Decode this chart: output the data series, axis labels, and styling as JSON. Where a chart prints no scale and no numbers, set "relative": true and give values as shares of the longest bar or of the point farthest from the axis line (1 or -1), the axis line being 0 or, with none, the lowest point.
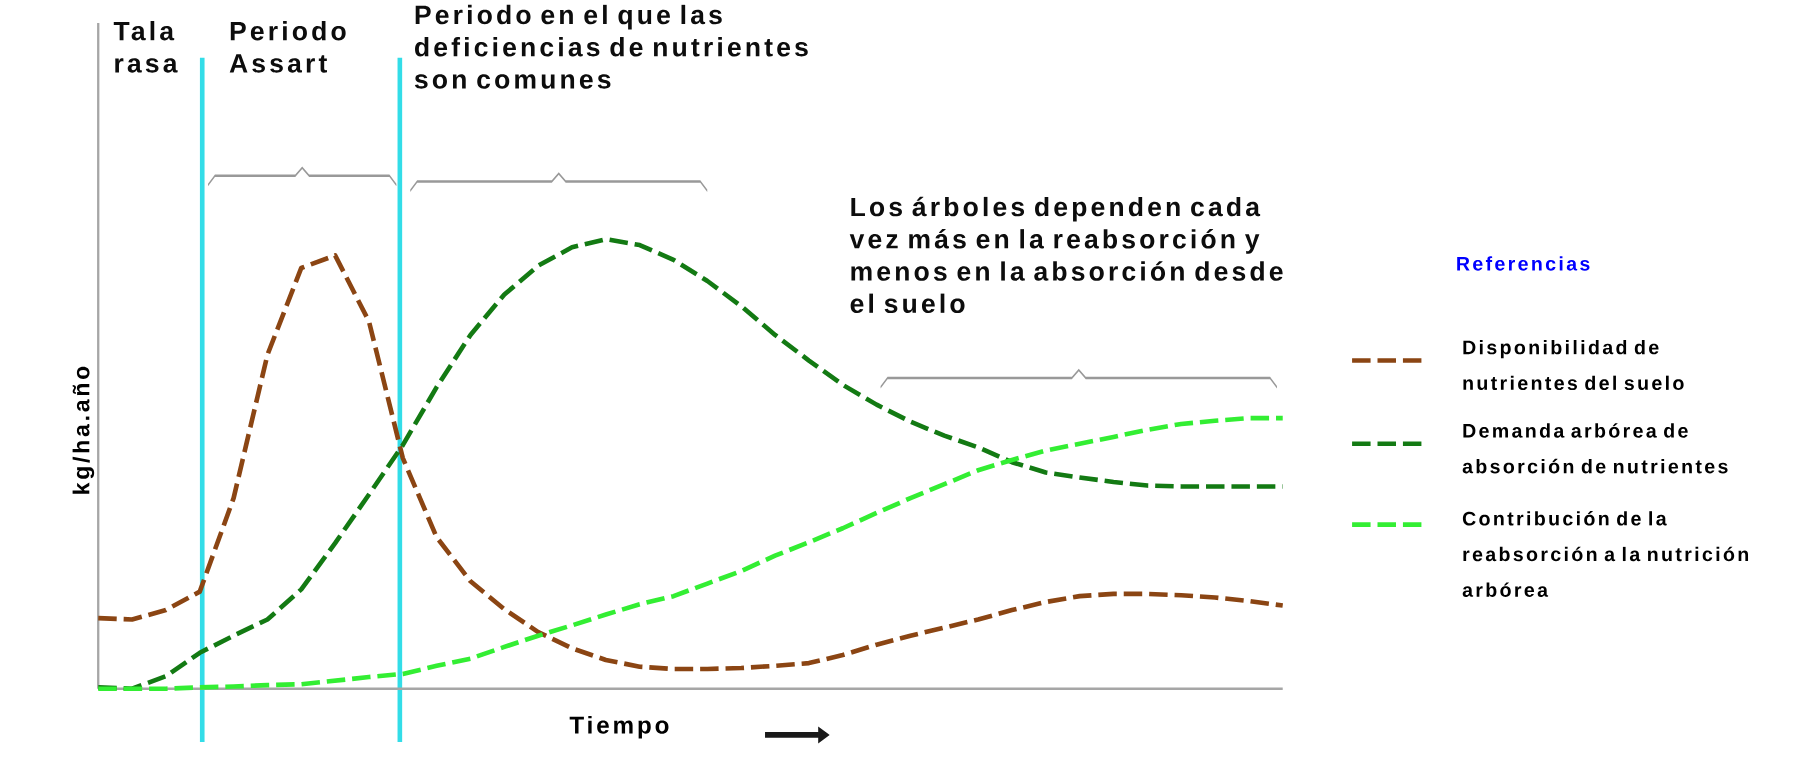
{
  "chart_data": {
    "type": "line",
    "relative": true,
    "xlabel": "Tiempo",
    "ylabel": "kg/ha.año",
    "legend_title": "Referencias",
    "legend": "right",
    "line_style": "dashed",
    "categories": [
      null,
      null,
      null,
      null,
      null,
      null,
      null,
      null,
      null,
      null,
      null,
      null,
      null,
      null,
      null,
      null,
      null,
      null,
      null,
      null,
      null,
      null,
      null,
      null,
      null,
      null,
      null,
      null,
      null,
      null,
      null,
      null,
      null,
      null,
      null,
      null
    ],
    "annotations": [
      "Tala rasa",
      "Periodo Assart",
      "Periodo en el que las deficiencias de nutrientes son comunes",
      "Los árboles dependen cada vez más en la reabsorción y menos en la absorción desde el suelo"
    ],
    "series": [
      {
        "name": "Disponibilidad de nutrientes del suelo",
        "color": "#8b4513",
        "values": [
          0.157,
          0.154,
          0.175,
          0.216,
          0.424,
          0.743,
          0.936,
          0.964,
          0.817,
          0.513,
          0.337,
          0.239,
          0.177,
          0.126,
          0.09,
          0.064,
          0.049,
          0.044,
          0.044,
          0.046,
          0.051,
          0.057,
          0.075,
          0.098,
          0.118,
          0.136,
          0.154,
          0.175,
          0.193,
          0.206,
          0.211,
          0.211,
          0.208,
          0.203,
          0.195,
          0.185
        ]
      },
      {
        "name": "Demanda arbórea de absorción de nutrientes",
        "color": "#137a13",
        "values": [
          0.003,
          0,
          0.028,
          0.08,
          0.118,
          0.154,
          0.221,
          0.324,
          0.432,
          0.542,
          0.671,
          0.787,
          0.877,
          0.941,
          0.982,
          1,
          0.987,
          0.954,
          0.907,
          0.851,
          0.787,
          0.73,
          0.676,
          0.632,
          0.594,
          0.563,
          0.537,
          0.504,
          0.481,
          0.47,
          0.46,
          0.452,
          0.45,
          0.45,
          0.45,
          0.45
        ]
      },
      {
        "name": "Contribución de la reabsorción a la nutrición arbórea",
        "color": "#33ee33",
        "values": [
          0,
          0,
          0,
          0.003,
          0.005,
          0.008,
          0.01,
          0.018,
          0.026,
          0.033,
          0.051,
          0.067,
          0.093,
          0.118,
          0.141,
          0.165,
          0.188,
          0.206,
          0.234,
          0.262,
          0.296,
          0.326,
          0.357,
          0.391,
          0.424,
          0.455,
          0.486,
          0.509,
          0.53,
          0.545,
          0.56,
          0.576,
          0.589,
          0.596,
          0.602,
          0.602
        ]
      }
    ]
  }
}
